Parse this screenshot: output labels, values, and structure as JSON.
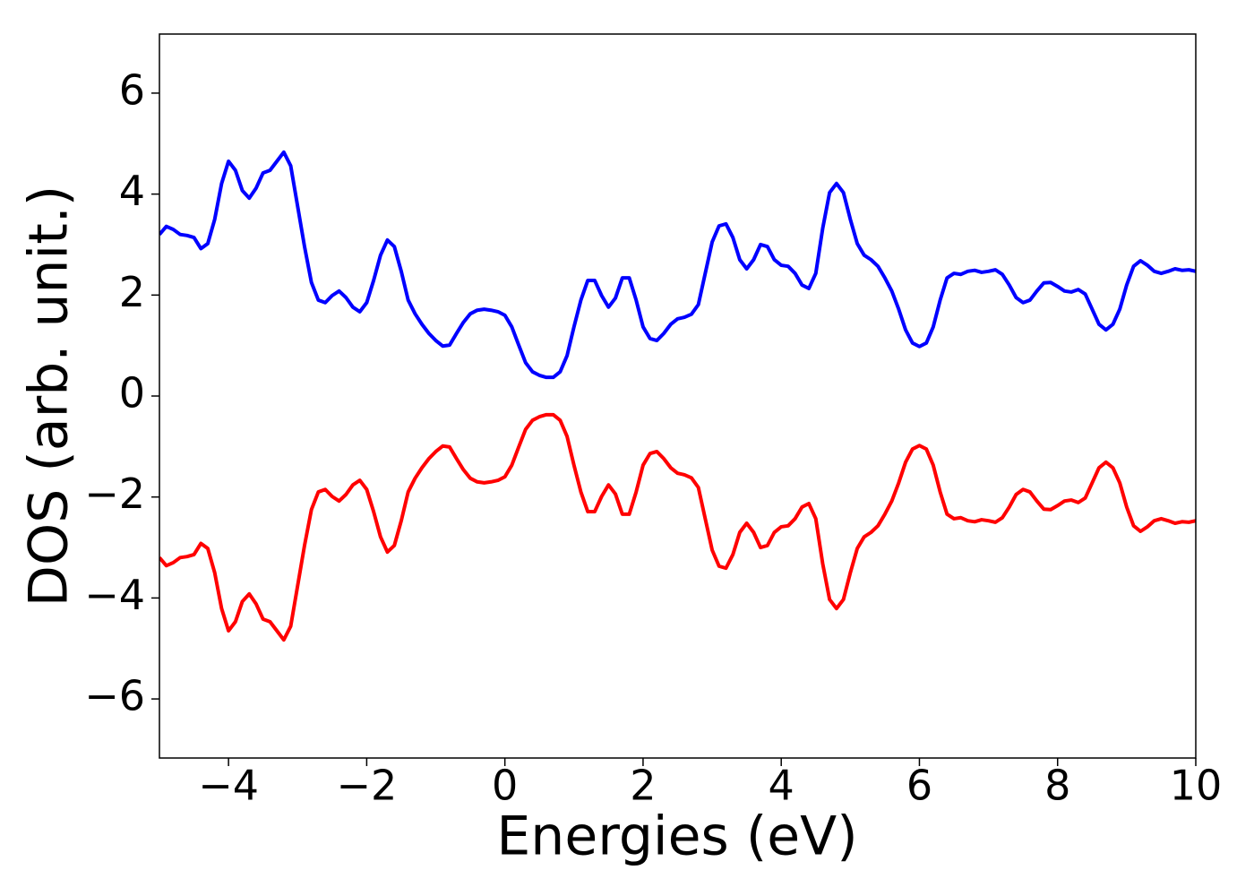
{
  "chart_data": {
    "type": "line",
    "xlabel": "Energies (eV)",
    "ylabel": "DOS (arb. unit.)",
    "xlim": [
      -5,
      10
    ],
    "ylim": [
      -7.17,
      7.17
    ],
    "xticks": [
      {
        "value": -4,
        "label": "−4"
      },
      {
        "value": -2,
        "label": "−2"
      },
      0,
      2,
      4,
      6,
      8,
      10
    ],
    "yticks": [
      {
        "value": -6,
        "label": "−6"
      },
      {
        "value": -4,
        "label": "−4"
      },
      {
        "value": -2,
        "label": "−2"
      },
      0,
      2,
      4,
      6
    ],
    "grid": false,
    "x": [
      -5.0,
      -4.9,
      -4.8,
      -4.7,
      -4.6,
      -4.5,
      -4.4,
      -4.3,
      -4.2,
      -4.1,
      -4.0,
      -3.9,
      -3.8,
      -3.7,
      -3.6,
      -3.5,
      -3.4,
      -3.3,
      -3.2,
      -3.1,
      -3.0,
      -2.9,
      -2.8,
      -2.7,
      -2.6,
      -2.5,
      -2.4,
      -2.3,
      -2.2,
      -2.1,
      -2.0,
      -1.9,
      -1.8,
      -1.7,
      -1.6,
      -1.5,
      -1.4,
      -1.3,
      -1.2,
      -1.1,
      -1.0,
      -0.9,
      -0.8,
      -0.7,
      -0.6,
      -0.5,
      -0.4,
      -0.3,
      -0.2,
      -0.1,
      0.0,
      0.1,
      0.2,
      0.3,
      0.4,
      0.5,
      0.6,
      0.7,
      0.8,
      0.9,
      1.0,
      1.1,
      1.2,
      1.3,
      1.4,
      1.5,
      1.6,
      1.7,
      1.8,
      1.9,
      2.0,
      2.1,
      2.2,
      2.3,
      2.4,
      2.5,
      2.6,
      2.7,
      2.8,
      2.9,
      3.0,
      3.1,
      3.2,
      3.3,
      3.4,
      3.5,
      3.6,
      3.7,
      3.8,
      3.9,
      4.0,
      4.1,
      4.2,
      4.3,
      4.4,
      4.5,
      4.6,
      4.7,
      4.8,
      4.9,
      5.0,
      5.1,
      5.2,
      5.3,
      5.4,
      5.5,
      5.6,
      5.7,
      5.8,
      5.9,
      6.0,
      6.1,
      6.2,
      6.3,
      6.4,
      6.5,
      6.6,
      6.7,
      6.8,
      6.9,
      7.0,
      7.1,
      7.2,
      7.3,
      7.4,
      7.5,
      7.6,
      7.7,
      7.8,
      7.9,
      8.0,
      8.1,
      8.2,
      8.3,
      8.4,
      8.5,
      8.6,
      8.7,
      8.8,
      8.9,
      9.0,
      9.1,
      9.2,
      9.3,
      9.4,
      9.5,
      9.6,
      9.7,
      9.8,
      9.9,
      10.0
    ],
    "series": [
      {
        "color": "#0000ff",
        "values": [
          3.2,
          3.36,
          3.3,
          3.2,
          3.18,
          3.14,
          2.92,
          3.02,
          3.5,
          4.21,
          4.65,
          4.47,
          4.07,
          3.92,
          4.12,
          4.42,
          4.47,
          4.65,
          4.83,
          4.56,
          3.76,
          2.96,
          2.25,
          1.9,
          1.85,
          1.99,
          2.08,
          1.95,
          1.76,
          1.67,
          1.85,
          2.29,
          2.79,
          3.09,
          2.96,
          2.47,
          1.9,
          1.63,
          1.42,
          1.24,
          1.1,
          0.99,
          1.01,
          1.24,
          1.46,
          1.63,
          1.7,
          1.72,
          1.7,
          1.67,
          1.6,
          1.37,
          1.01,
          0.66,
          0.48,
          0.41,
          0.37,
          0.37,
          0.48,
          0.8,
          1.37,
          1.9,
          2.29,
          2.29,
          1.99,
          1.76,
          1.94,
          2.34,
          2.34,
          1.9,
          1.37,
          1.14,
          1.1,
          1.24,
          1.42,
          1.53,
          1.56,
          1.62,
          1.81,
          2.43,
          3.05,
          3.37,
          3.41,
          3.14,
          2.7,
          2.52,
          2.7,
          3.0,
          2.96,
          2.7,
          2.59,
          2.57,
          2.43,
          2.2,
          2.13,
          2.43,
          3.32,
          4.03,
          4.21,
          4.03,
          3.5,
          3.02,
          2.79,
          2.7,
          2.57,
          2.34,
          2.08,
          1.72,
          1.31,
          1.05,
          0.98,
          1.05,
          1.37,
          1.9,
          2.34,
          2.43,
          2.41,
          2.47,
          2.49,
          2.45,
          2.47,
          2.5,
          2.41,
          2.2,
          1.95,
          1.85,
          1.9,
          2.08,
          2.24,
          2.25,
          2.17,
          2.08,
          2.06,
          2.11,
          2.02,
          1.72,
          1.42,
          1.31,
          1.42,
          1.72,
          2.2,
          2.57,
          2.68,
          2.59,
          2.47,
          2.43,
          2.47,
          2.52,
          2.49,
          2.5,
          2.47
        ]
      },
      {
        "color": "#ff0000",
        "values": [
          -3.2,
          -3.36,
          -3.3,
          -3.2,
          -3.18,
          -3.14,
          -2.92,
          -3.02,
          -3.5,
          -4.21,
          -4.65,
          -4.47,
          -4.07,
          -3.92,
          -4.12,
          -4.42,
          -4.47,
          -4.65,
          -4.83,
          -4.56,
          -3.76,
          -2.96,
          -2.25,
          -1.9,
          -1.85,
          -1.99,
          -2.08,
          -1.95,
          -1.76,
          -1.67,
          -1.85,
          -2.29,
          -2.79,
          -3.09,
          -2.96,
          -2.47,
          -1.9,
          -1.63,
          -1.42,
          -1.24,
          -1.1,
          -0.99,
          -1.01,
          -1.24,
          -1.46,
          -1.63,
          -1.7,
          -1.72,
          -1.7,
          -1.67,
          -1.6,
          -1.37,
          -1.01,
          -0.66,
          -0.48,
          -0.41,
          -0.37,
          -0.37,
          -0.48,
          -0.8,
          -1.37,
          -1.9,
          -2.29,
          -2.29,
          -1.99,
          -1.76,
          -1.94,
          -2.34,
          -2.34,
          -1.9,
          -1.37,
          -1.14,
          -1.1,
          -1.24,
          -1.42,
          -1.53,
          -1.56,
          -1.62,
          -1.81,
          -2.43,
          -3.05,
          -3.37,
          -3.41,
          -3.14,
          -2.7,
          -2.52,
          -2.7,
          -3.0,
          -2.96,
          -2.7,
          -2.59,
          -2.57,
          -2.43,
          -2.2,
          -2.13,
          -2.43,
          -3.32,
          -4.03,
          -4.21,
          -4.03,
          -3.5,
          -3.02,
          -2.79,
          -2.7,
          -2.57,
          -2.34,
          -2.08,
          -1.72,
          -1.31,
          -1.05,
          -0.98,
          -1.05,
          -1.37,
          -1.9,
          -2.34,
          -2.43,
          -2.41,
          -2.47,
          -2.49,
          -2.45,
          -2.47,
          -2.5,
          -2.41,
          -2.2,
          -1.95,
          -1.85,
          -1.9,
          -2.08,
          -2.24,
          -2.25,
          -2.17,
          -2.08,
          -2.06,
          -2.11,
          -2.02,
          -1.72,
          -1.42,
          -1.31,
          -1.42,
          -1.72,
          -2.2,
          -2.57,
          -2.68,
          -2.59,
          -2.47,
          -2.43,
          -2.47,
          -2.52,
          -2.49,
          -2.5,
          -2.47
        ]
      }
    ]
  }
}
